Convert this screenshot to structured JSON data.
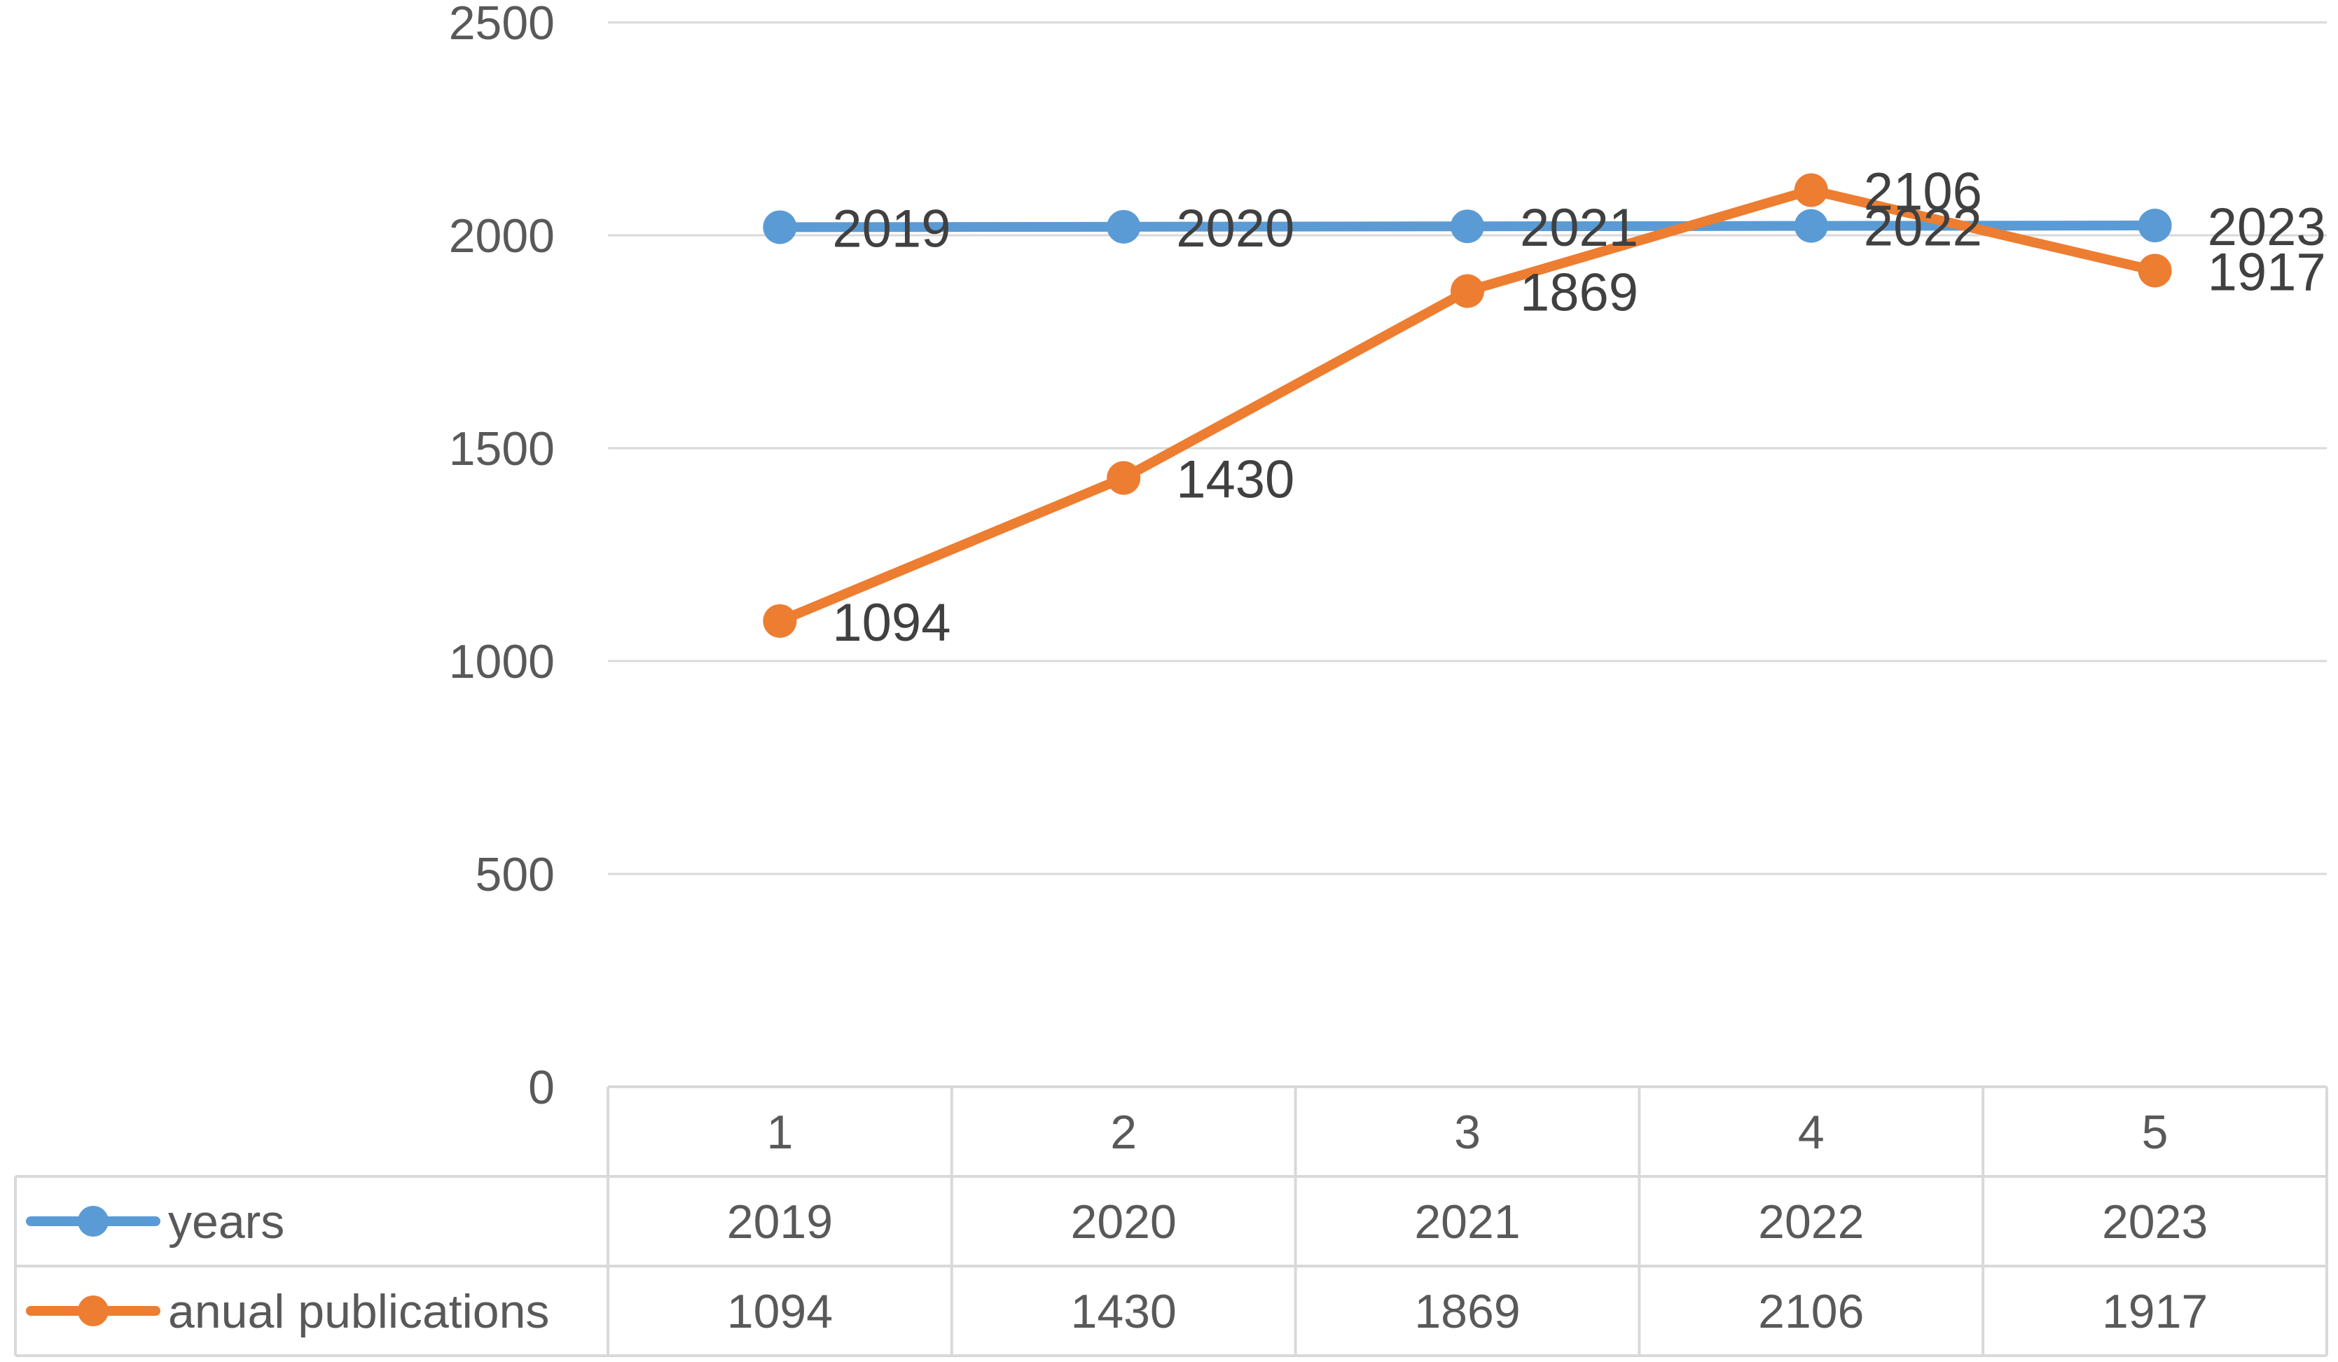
{
  "chart_data": {
    "type": "line",
    "categories": [
      "1",
      "2",
      "3",
      "4",
      "5"
    ],
    "ylim": [
      0,
      2500
    ],
    "yticks": [
      0,
      500,
      1000,
      1500,
      2000,
      2500
    ],
    "grid": true,
    "legend": "data-table-below",
    "series": [
      {
        "name": "years",
        "color": "#5B9BD5",
        "values": [
          2019,
          2020,
          2021,
          2022,
          2023
        ],
        "labels": [
          "2019",
          "2020",
          "2021",
          "2022",
          "2023"
        ]
      },
      {
        "name": "anual publications",
        "color": "#ED7D31",
        "values": [
          1094,
          1430,
          1869,
          2106,
          1917
        ],
        "labels": [
          "1094",
          "1430",
          "1869",
          "2106",
          "1917"
        ]
      }
    ]
  }
}
